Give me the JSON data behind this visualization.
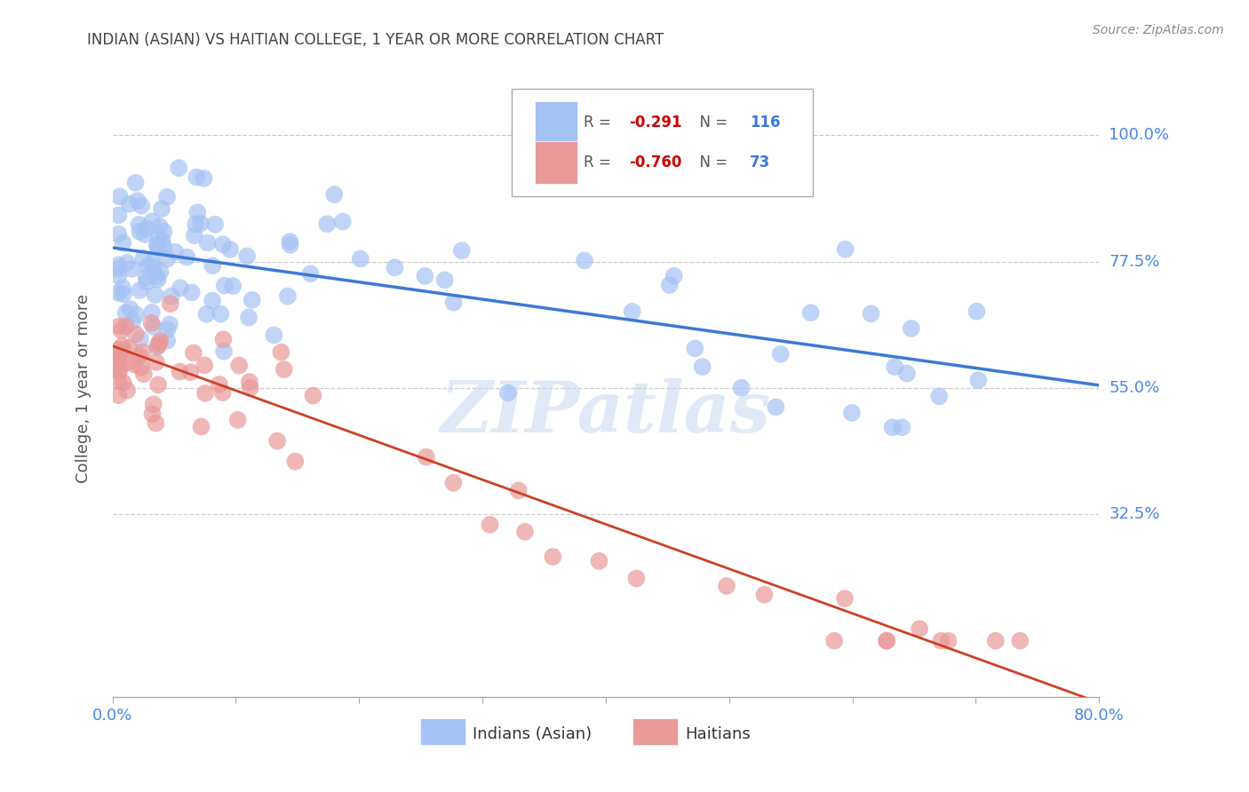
{
  "title": "INDIAN (ASIAN) VS HAITIAN COLLEGE, 1 YEAR OR MORE CORRELATION CHART",
  "source": "Source: ZipAtlas.com",
  "ylabel": "College, 1 year or more",
  "ytick_labels": [
    "100.0%",
    "77.5%",
    "55.0%",
    "32.5%"
  ],
  "ytick_positions": [
    1.0,
    0.775,
    0.55,
    0.325
  ],
  "xtick_labels": [
    "0.0%",
    "",
    "",
    "",
    "",
    "",
    "",
    "",
    "80.0%"
  ],
  "xtick_positions": [
    0.0,
    0.1,
    0.2,
    0.3,
    0.4,
    0.5,
    0.6,
    0.7,
    0.8
  ],
  "xlim": [
    0.0,
    0.8
  ],
  "ylim": [
    0.0,
    1.1
  ],
  "blue_color": "#a4c2f4",
  "blue_line_color": "#3c78d8",
  "pink_color": "#ea9999",
  "pink_line_color": "#cc4125",
  "legend_label_blue": "Indians (Asian)",
  "legend_label_pink": "Haitians",
  "watermark": "ZIPatlas",
  "title_color": "#434343",
  "axis_label_color": "#4a86e8",
  "r_blue": "-0.291",
  "n_blue": "116",
  "r_pink": "-0.760",
  "n_pink": "73",
  "blue_trend_x": [
    0.0,
    0.8
  ],
  "blue_trend_y": [
    0.8,
    0.555
  ],
  "pink_trend_x": [
    0.0,
    0.8
  ],
  "pink_trend_y": [
    0.625,
    -0.01
  ]
}
